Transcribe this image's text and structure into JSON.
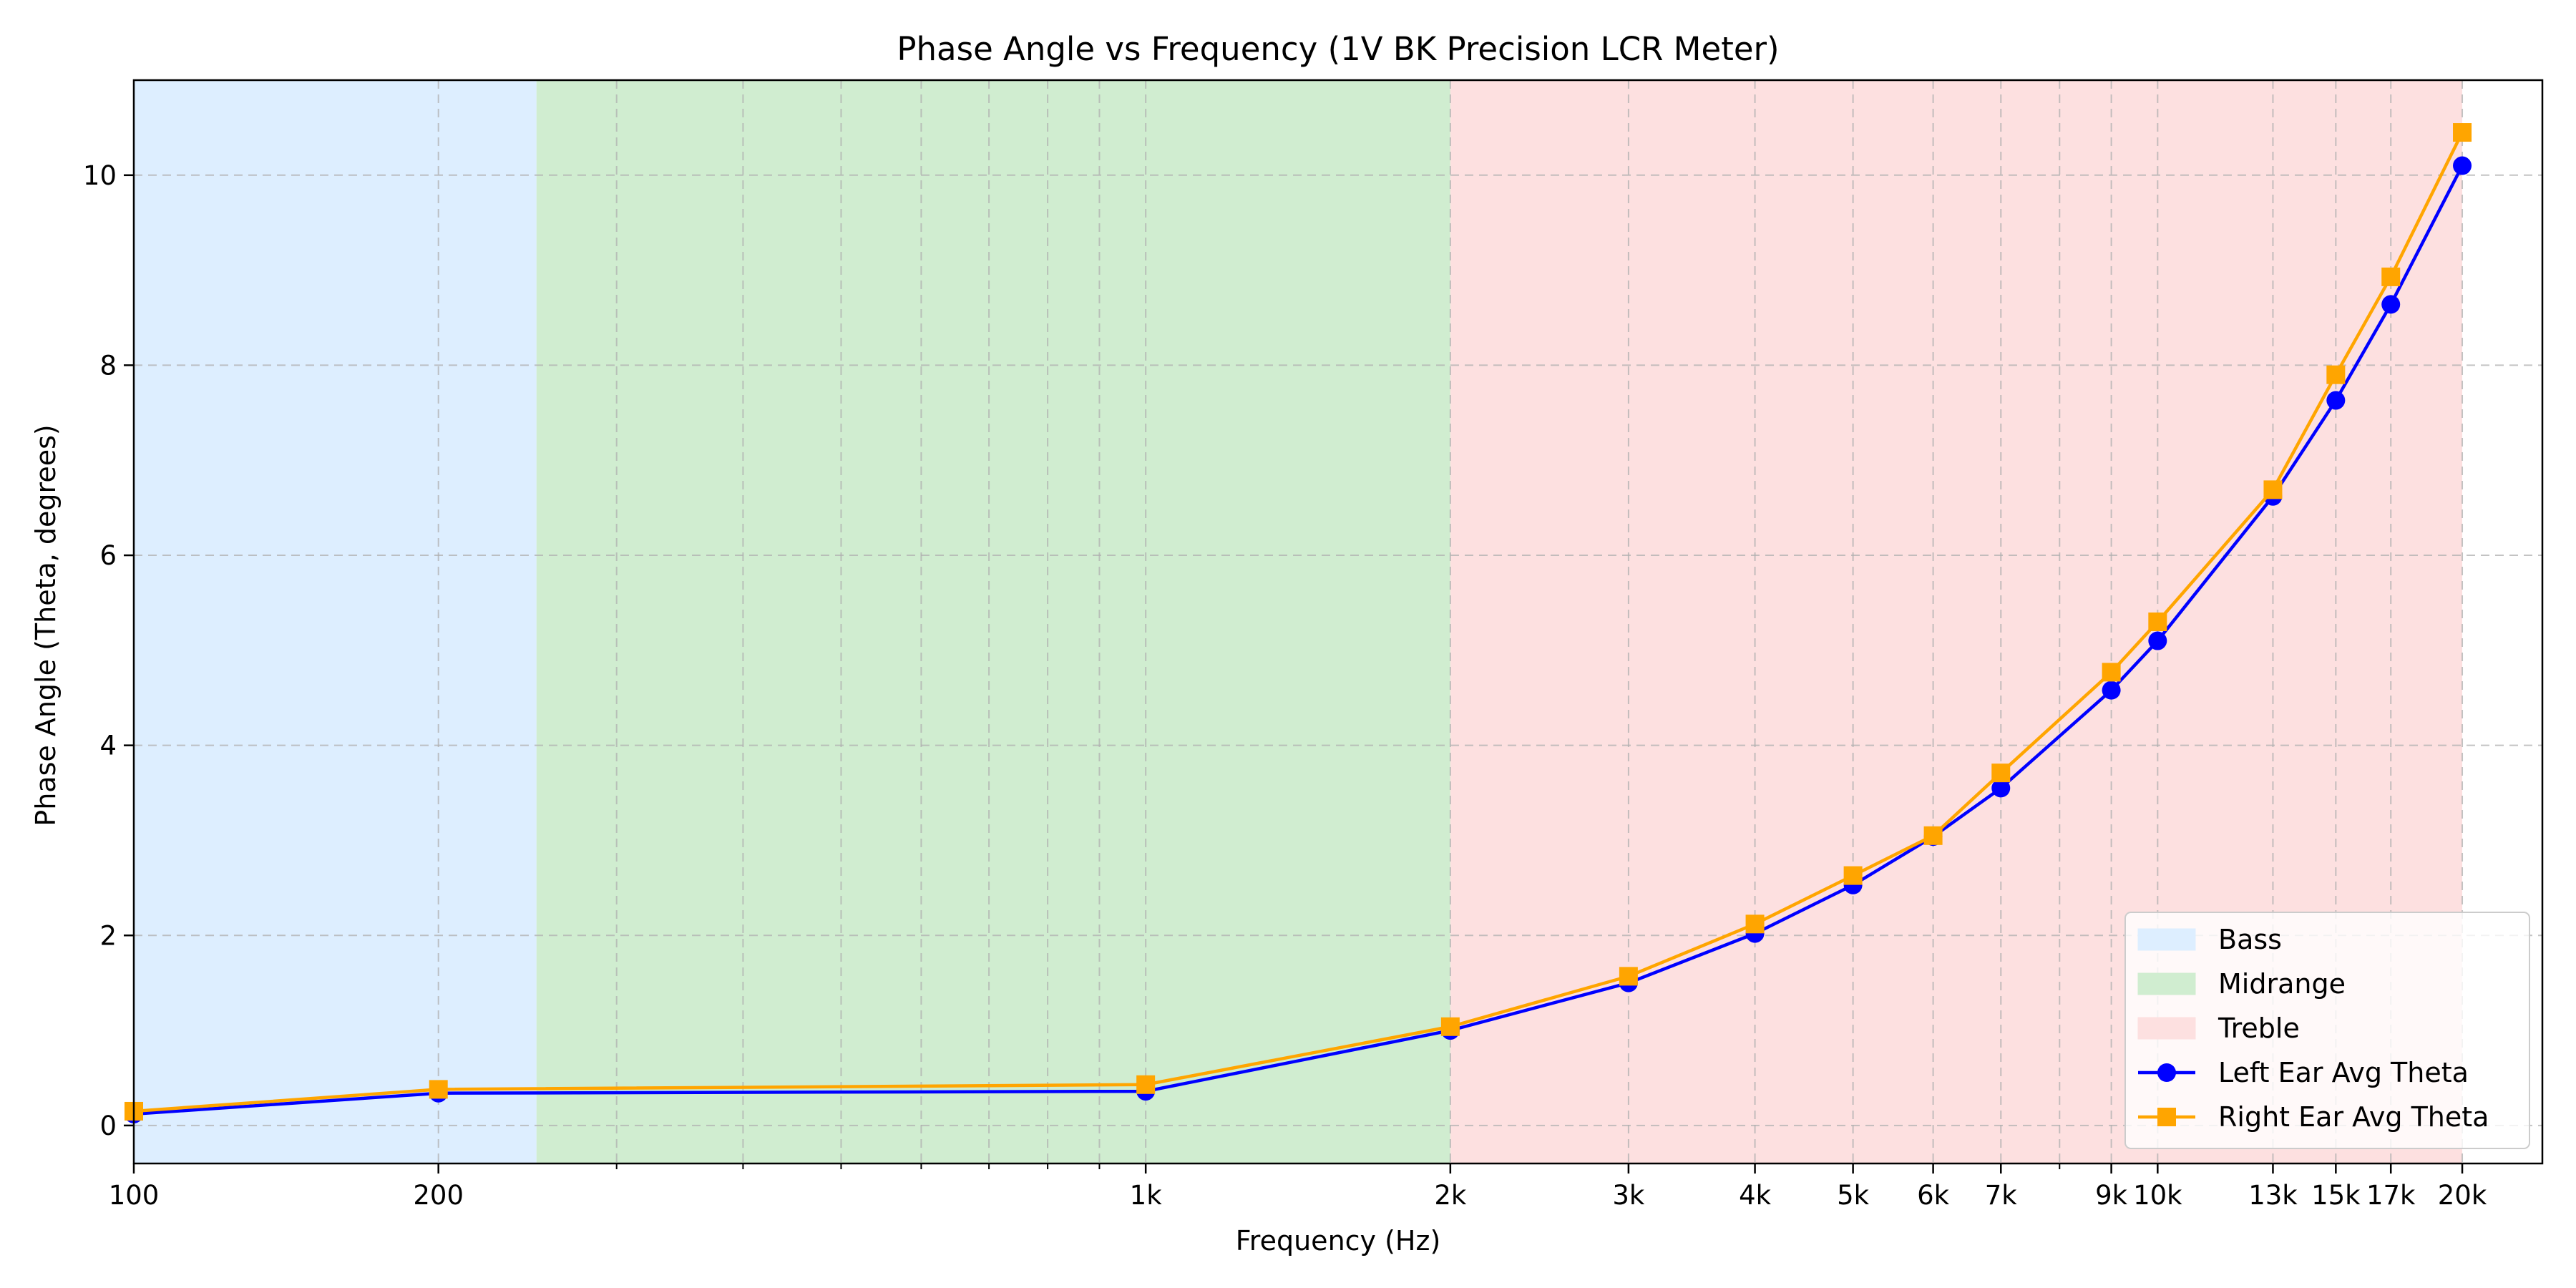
{
  "chart_data": {
    "type": "line",
    "title": "Phase Angle vs Frequency (1V BK Precision LCR Meter)",
    "xlabel": "Frequency (Hz)",
    "ylabel": "Phase Angle (Theta, degrees)",
    "xscale": "log",
    "xlim": [
      100,
      24000
    ],
    "ylim": [
      -0.4,
      11.0
    ],
    "grid": true,
    "legend_position": "lower right",
    "x_ticks": [
      {
        "value": 100,
        "label": "100"
      },
      {
        "value": 200,
        "label": "200"
      },
      {
        "value": 1000,
        "label": "1k"
      },
      {
        "value": 2000,
        "label": "2k"
      },
      {
        "value": 3000,
        "label": "3k"
      },
      {
        "value": 4000,
        "label": "4k"
      },
      {
        "value": 5000,
        "label": "5k"
      },
      {
        "value": 6000,
        "label": "6k"
      },
      {
        "value": 7000,
        "label": "7k"
      },
      {
        "value": 9000,
        "label": "9k"
      },
      {
        "value": 10000,
        "label": "10k"
      },
      {
        "value": 13000,
        "label": "13k"
      },
      {
        "value": 15000,
        "label": "15k"
      },
      {
        "value": 17000,
        "label": "17k"
      },
      {
        "value": 20000,
        "label": "20k"
      }
    ],
    "x_minor_ticks": [
      300,
      400,
      500,
      600,
      700,
      800,
      900,
      8000
    ],
    "y_ticks": [
      {
        "value": 0,
        "label": "0"
      },
      {
        "value": 2,
        "label": "2"
      },
      {
        "value": 4,
        "label": "4"
      },
      {
        "value": 6,
        "label": "6"
      },
      {
        "value": 8,
        "label": "8"
      },
      {
        "value": 10,
        "label": "10"
      }
    ],
    "bands": [
      {
        "name": "Bass",
        "from": 100,
        "to": 250,
        "color": "#ddeeff"
      },
      {
        "name": "Midrange",
        "from": 250,
        "to": 2000,
        "color": "#d0edd0"
      },
      {
        "name": "Treble",
        "from": 2000,
        "to": 20000,
        "color": "#fde0e0"
      }
    ],
    "series": [
      {
        "name": "Left Ear Avg Theta",
        "color": "#0000ff",
        "marker": "circle",
        "x": [
          100,
          200,
          1000,
          2000,
          3000,
          4000,
          5000,
          6000,
          7000,
          9000,
          10000,
          13000,
          15000,
          17000,
          20000
        ],
        "values": [
          0.12,
          0.34,
          0.36,
          1.0,
          1.5,
          2.02,
          2.53,
          3.04,
          3.55,
          4.58,
          5.1,
          6.62,
          7.63,
          8.64,
          10.1
        ]
      },
      {
        "name": "Right Ear Avg Theta",
        "color": "#ffa500",
        "marker": "square",
        "x": [
          100,
          200,
          1000,
          2000,
          3000,
          4000,
          5000,
          6000,
          7000,
          9000,
          10000,
          13000,
          15000,
          17000,
          20000
        ],
        "values": [
          0.15,
          0.38,
          0.43,
          1.04,
          1.57,
          2.12,
          2.63,
          3.05,
          3.71,
          4.77,
          5.3,
          6.69,
          7.9,
          8.93,
          10.45
        ]
      }
    ]
  }
}
